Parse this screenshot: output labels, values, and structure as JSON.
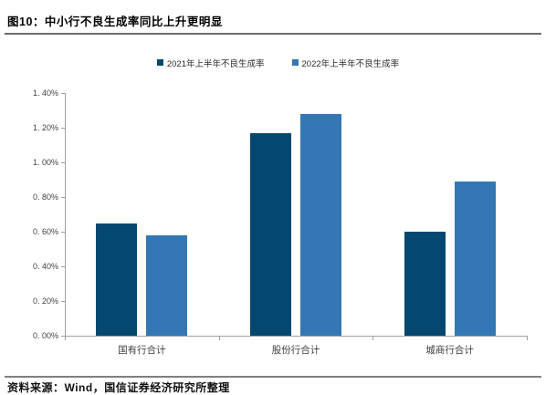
{
  "figure": {
    "title": "图10：中小行不良生成率同比上升更明显",
    "source": "资料来源：Wind，国信证券经济研究所整理"
  },
  "chart_data": {
    "type": "bar",
    "title": "图10：中小行不良生成率同比上升更明显",
    "categories": [
      "国有行合计",
      "股份行合计",
      "城商行合计"
    ],
    "series": [
      {
        "name": "2021年上半年不良生成率",
        "color": "#04476F",
        "values": [
          0.65,
          1.17,
          0.6
        ]
      },
      {
        "name": "2022年上半年不良生成率",
        "color": "#3377B5",
        "values": [
          0.58,
          1.28,
          0.89
        ]
      }
    ],
    "value_unit": "%",
    "ylim": [
      0,
      1.4
    ],
    "ytick_step": 0.2,
    "ytick_labels": [
      "0. 00%",
      "0. 20%",
      "0. 40%",
      "0. 60%",
      "0. 80%",
      "1. 00%",
      "1. 20%",
      "1. 40%"
    ],
    "legend_position": "top-center",
    "grid": false,
    "axis_color": "#a0a0a0"
  }
}
